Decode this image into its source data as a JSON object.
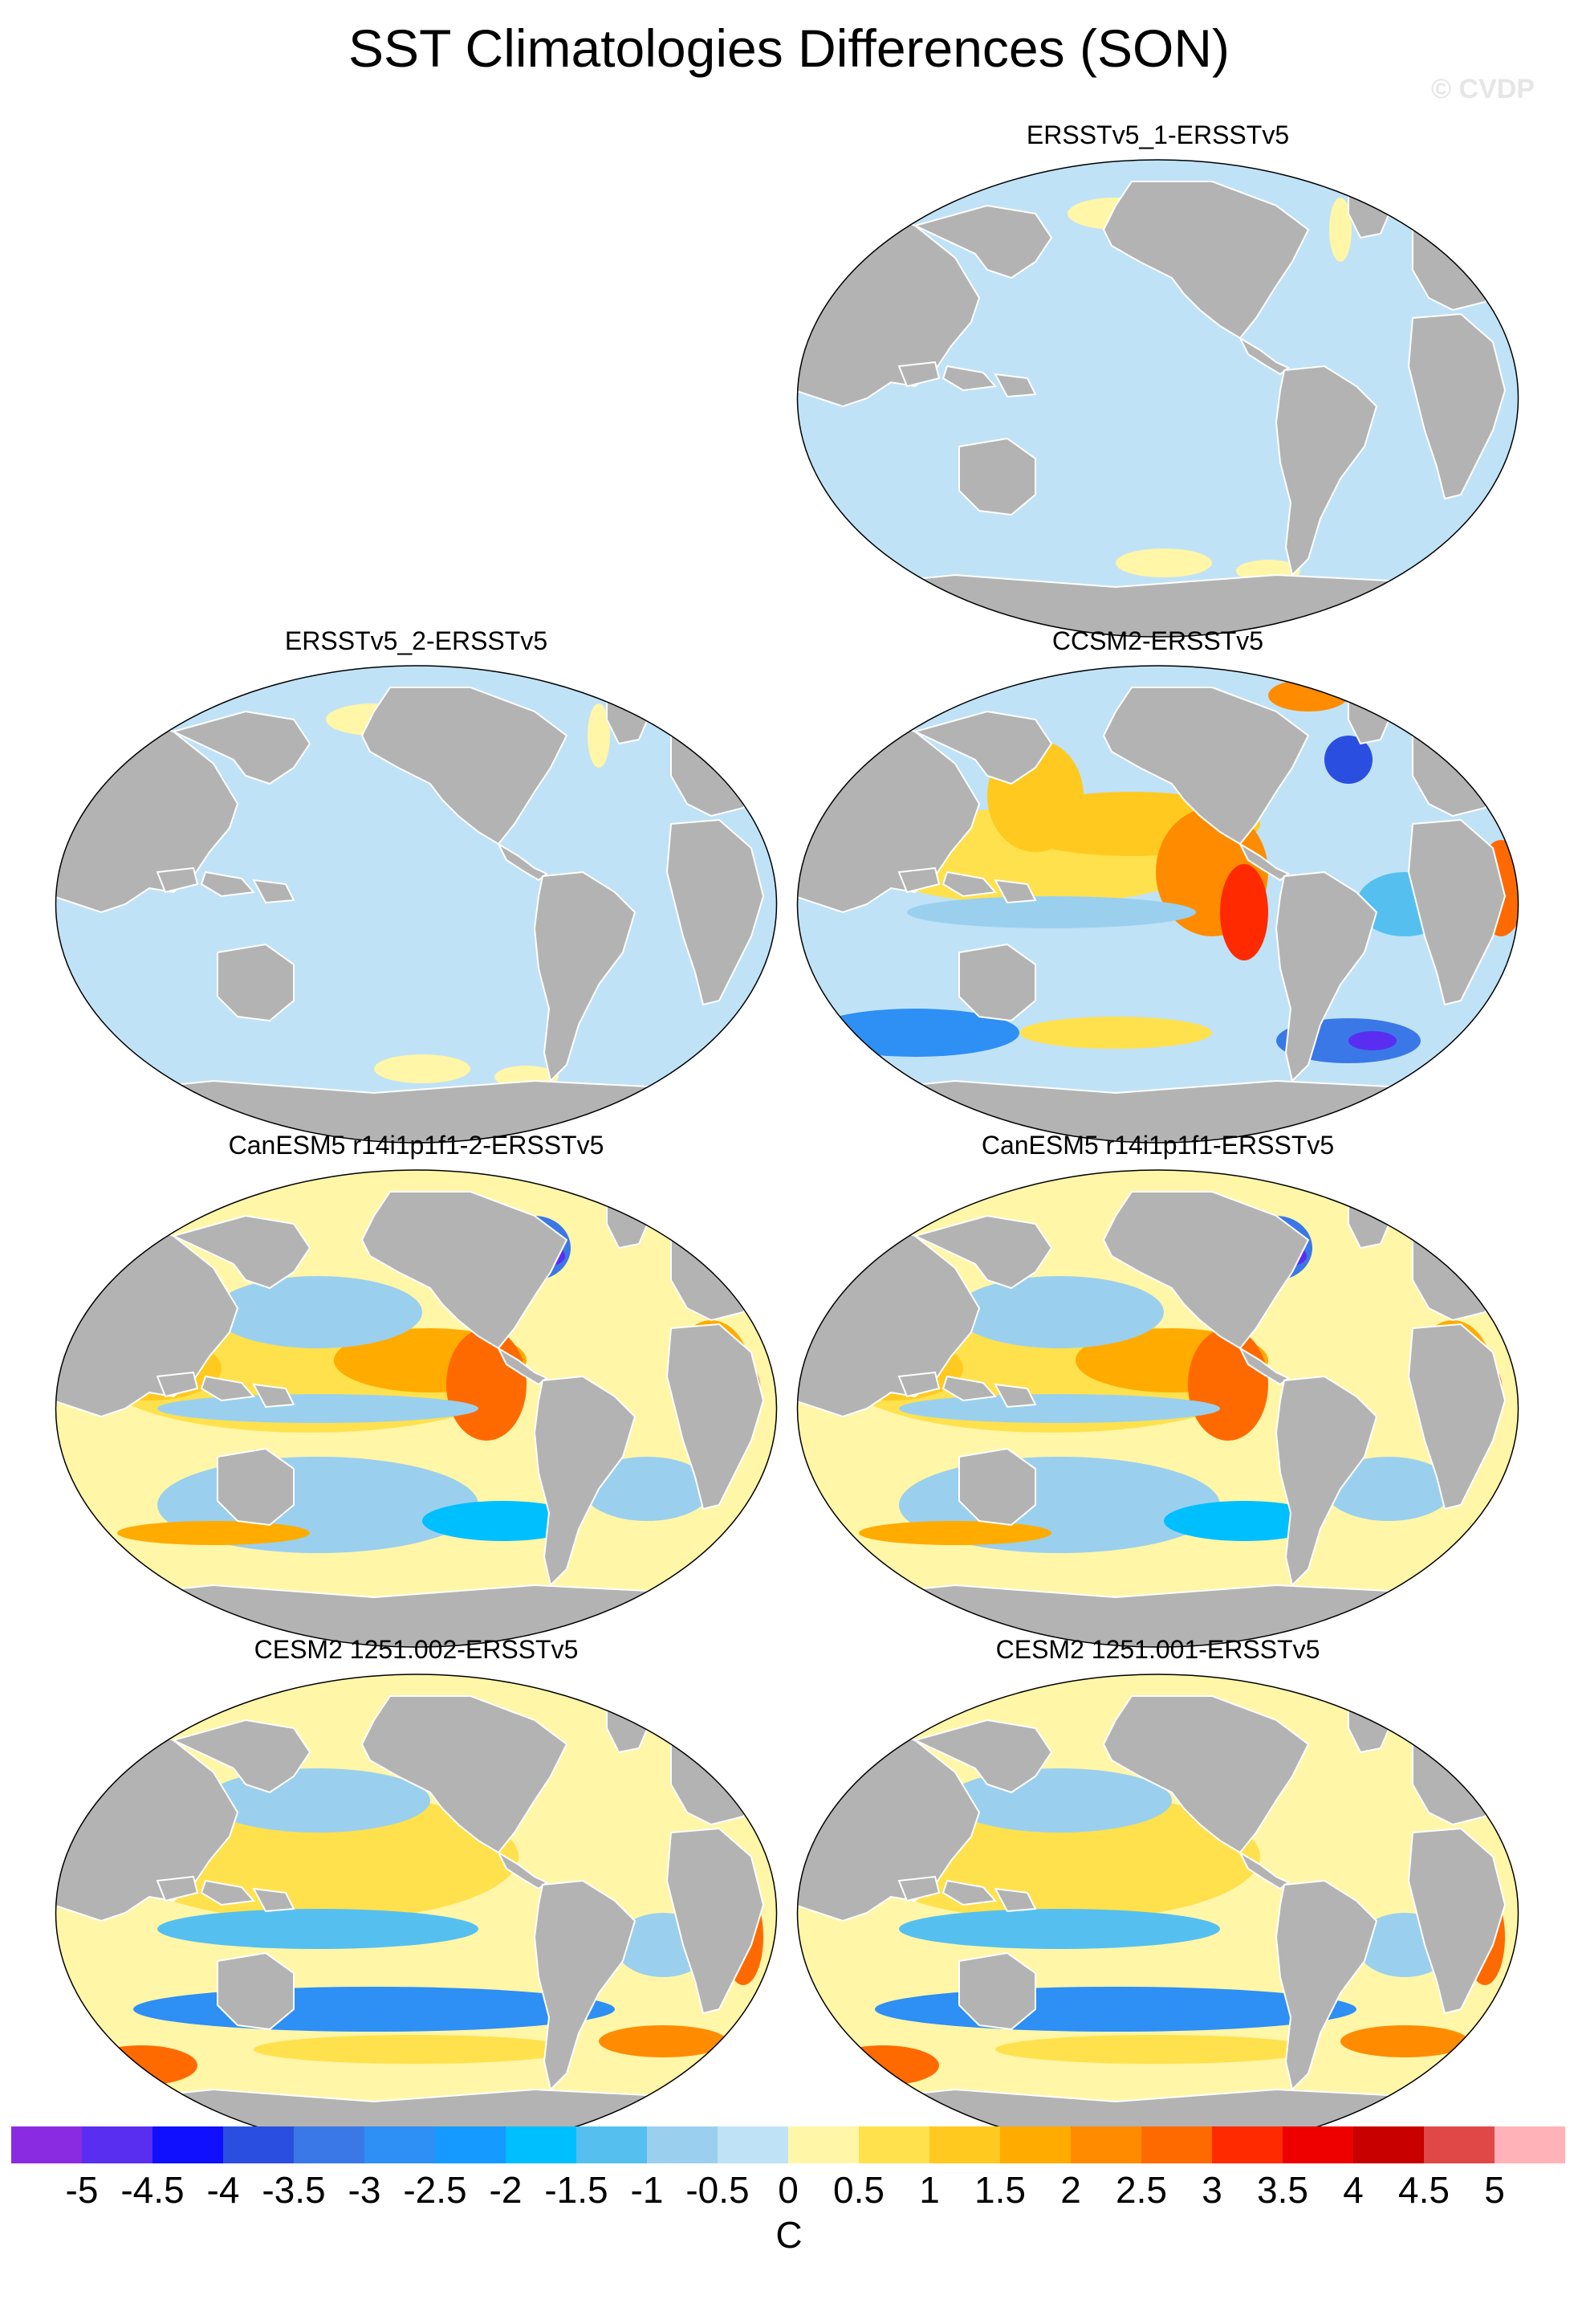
{
  "title": "SST Climatologies Differences (SON)",
  "watermark": "© CVDP",
  "colorbar": {
    "unit": "C",
    "ticks": [
      "-5",
      "-4.5",
      "-4",
      "-3.5",
      "-3",
      "-2.5",
      "-2",
      "-1.5",
      "-1",
      "-0.5",
      "0",
      "0.5",
      "1",
      "1.5",
      "2",
      "2.5",
      "3",
      "3.5",
      "4",
      "4.5",
      "5"
    ],
    "colors": [
      "#8a2be2",
      "#5a2ef0",
      "#1010ff",
      "#2a4fe0",
      "#3a78e8",
      "#2e8ff5",
      "#159bff",
      "#00bfff",
      "#55c0f0",
      "#9ad0ee",
      "#c0e2f6",
      "#fff6a8",
      "#ffe14d",
      "#ffc91f",
      "#ffab00",
      "#ff8c00",
      "#ff6a00",
      "#ff2a00",
      "#ee0000",
      "#c80000",
      "#e04848",
      "#ffb3b8"
    ]
  },
  "land_color": "#b3b3b3",
  "panels": [
    {
      "title": "ERSSTv5_1-ERSSTv5",
      "style": "zero"
    },
    {
      "title": "ERSSTv5_2-ERSSTv5",
      "style": "zero"
    },
    {
      "title": "CCSM2-ERSSTv5",
      "style": "ccsm"
    },
    {
      "title": "CanESM5 r14i1p1f1-2-ERSSTv5",
      "style": "can"
    },
    {
      "title": "CanESM5 r14i1p1f1-ERSSTv5",
      "style": "can"
    },
    {
      "title": "CESM2 1251.002-ERSSTv5",
      "style": "cesm"
    },
    {
      "title": "CESM2 1251.001-ERSSTv5",
      "style": "cesm"
    }
  ]
}
